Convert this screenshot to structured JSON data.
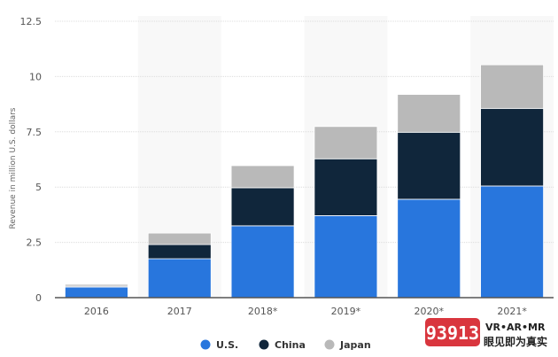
{
  "chart_data": {
    "type": "bar",
    "stacked": true,
    "title": "",
    "xlabel": "",
    "ylabel": "Revenue in million U.S. dollars",
    "ylim": [
      0,
      12.5
    ],
    "yticks": [
      "0",
      "2.5",
      "5",
      "7.5",
      "10",
      "12.5"
    ],
    "ytick_values": [
      0,
      2.5,
      5,
      7.5,
      10,
      12.5
    ],
    "grid": true,
    "categories": [
      "2016",
      "2017",
      "2018*",
      "2019*",
      "2020*",
      "2021*"
    ],
    "series": [
      {
        "name": "U.S.",
        "color": "#2876dd",
        "values": [
          0.48,
          1.76,
          3.25,
          3.71,
          4.45,
          5.05
        ]
      },
      {
        "name": "China",
        "color": "#10263b",
        "values": [
          0.04,
          0.64,
          1.72,
          2.57,
          3.03,
          3.51
        ]
      },
      {
        "name": "Japan",
        "color": "#b9b9b9",
        "values": [
          0.08,
          0.52,
          1.0,
          1.46,
          1.71,
          1.97
        ]
      }
    ],
    "legend": "bottom"
  },
  "watermark": {
    "logo_text": "93913",
    "tagline_top": "VR•AR•MR",
    "tagline_bottom": "眼见即为真实"
  }
}
